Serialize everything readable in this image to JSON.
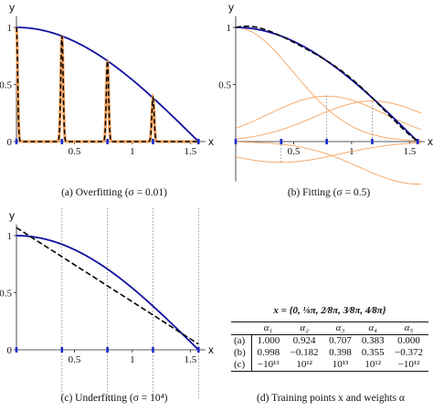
{
  "colors": {
    "target": "#1010a0",
    "fit": "#000000",
    "basis": "#f4a460",
    "point": "#1c2ccc",
    "fit_highlight": "#f4a460"
  },
  "chart_data": [
    {
      "type": "line",
      "id": "a",
      "caption": "(a) Overfitting (σ = 0.01)",
      "xlabel": "x",
      "ylabel": "y",
      "xlim": [
        0,
        1.6
      ],
      "ylim": [
        0,
        1.05
      ],
      "xticks": [
        "0.5",
        "1",
        "1.5"
      ],
      "yticks": [
        "0",
        "0.5",
        "1"
      ],
      "sigma": 0.01,
      "series": [
        {
          "kind": "target",
          "function": "cos(x)"
        },
        {
          "kind": "fit",
          "style": "dashed"
        }
      ],
      "training_x": [
        0,
        0.3927,
        0.7854,
        1.1781,
        1.5708
      ],
      "weights": [
        1.0,
        0.924,
        0.707,
        0.383,
        0.0
      ]
    },
    {
      "type": "line",
      "id": "b",
      "caption": "(b) Fitting (σ = 0.5)",
      "xlabel": "x",
      "ylabel": "y",
      "xlim": [
        0,
        1.6
      ],
      "ylim": [
        -0.35,
        1.05
      ],
      "xticks": [
        "0.5",
        "1",
        "1.5"
      ],
      "yticks": [
        "0.5",
        "1"
      ],
      "sigma": 0.5,
      "series": [
        {
          "kind": "target",
          "function": "cos(x)"
        },
        {
          "kind": "fit",
          "style": "dashed"
        },
        {
          "kind": "basis",
          "style": "thin"
        }
      ],
      "training_x": [
        0,
        0.3927,
        0.7854,
        1.1781,
        1.5708
      ],
      "weights": [
        0.998,
        -0.182,
        0.398,
        0.355,
        -0.372
      ]
    },
    {
      "type": "line",
      "id": "c",
      "caption": "(c) Underfitting (σ = 10⁴)",
      "xlabel": "x",
      "ylabel": "y",
      "xlim": [
        0,
        1.6
      ],
      "ylim": [
        0,
        1.05
      ],
      "xticks": [
        "0.5",
        "1",
        "1.5"
      ],
      "yticks": [
        "0",
        "0.5",
        "1"
      ],
      "sigma": 10000,
      "series": [
        {
          "kind": "target",
          "function": "cos(x)"
        },
        {
          "kind": "fit",
          "style": "dashed",
          "x": [
            0,
            1.5708
          ],
          "y": [
            1.07,
            0.05
          ]
        }
      ],
      "training_x": [
        0,
        0.3927,
        0.7854,
        1.1781,
        1.5708
      ]
    },
    {
      "type": "table",
      "id": "d",
      "caption": "(d) Training points x and weights α",
      "formula": "x = {0, ⅛π, 2⁄8π, 3⁄8π, 4⁄8π}",
      "columns": [
        "",
        "α₁",
        "α₂",
        "α₃",
        "α₄",
        "α₅"
      ],
      "rows": [
        [
          "(a)",
          "1.000",
          "0.924",
          "0.707",
          "0.383",
          "0.000"
        ],
        [
          "(b)",
          "0.998",
          "−0.182",
          "0.398",
          "0.355",
          "−0.372"
        ],
        [
          "(c)",
          "−10¹³",
          "10¹²",
          "10¹³",
          "10¹²",
          "−10¹²"
        ]
      ]
    }
  ]
}
